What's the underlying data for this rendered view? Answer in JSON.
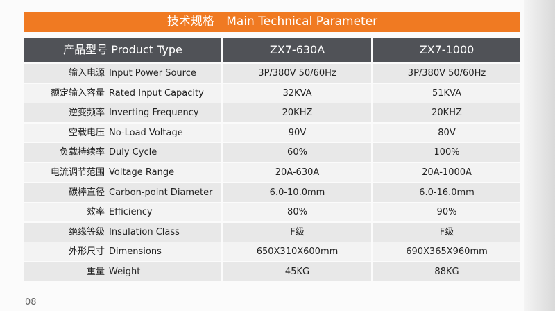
{
  "title": {
    "cn": "技术规格",
    "en": "Main Technical Parameter"
  },
  "header": {
    "cn": "产品型号",
    "en": "Product Type",
    "models": [
      "ZX7-630A",
      "ZX7-1000"
    ]
  },
  "rows": [
    [
      "输入电源",
      "Input Power Source",
      "3P/380V  50/60Hz",
      "3P/380V  50/60Hz"
    ],
    [
      "额定输入容量",
      "Rated Input Capacity",
      "32KVA",
      "51KVA"
    ],
    [
      "逆变频率",
      "Inverting Frequency",
      "20KHZ",
      "20KHZ"
    ],
    [
      "空载电压",
      "No-Load Voltage",
      "90V",
      "80V"
    ],
    [
      "负载持续率",
      "Duly Cycle",
      "60%",
      "100%"
    ],
    [
      "电流调节范围",
      "Voltage Range",
      "20A-630A",
      "20A-1000A"
    ],
    [
      "碳棒直径",
      "Carbon-point  Diameter",
      "6.0-10.0mm",
      "6.0-16.0mm"
    ],
    [
      "效率",
      "Efficiency",
      "80%",
      "90%"
    ],
    [
      "绝缘等级",
      "Insulation Class",
      "F级",
      "F级"
    ],
    [
      "外形尺寸",
      "Dimensions",
      "650X310X600mm",
      "690X365X960mm"
    ],
    [
      "重量",
      "Weight",
      "45KG",
      "88KG"
    ]
  ],
  "page_number": "08"
}
